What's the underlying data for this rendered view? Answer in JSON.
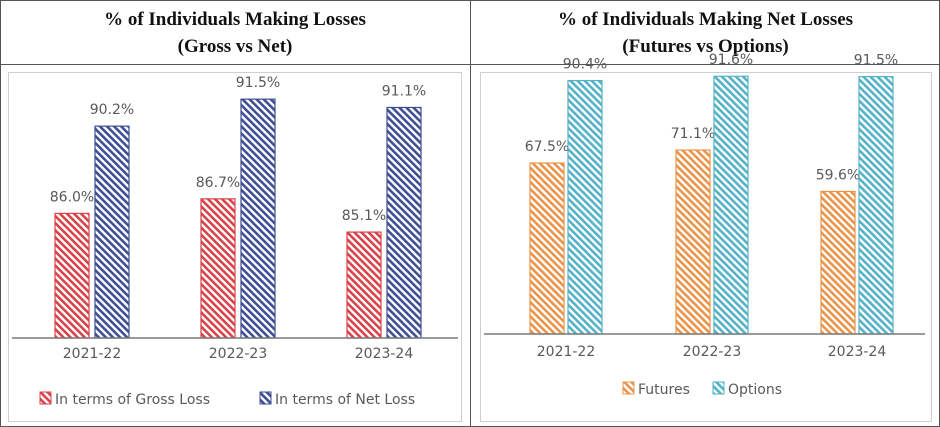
{
  "colors": {
    "gross": "#d8434a",
    "net": "#3e4f93",
    "futures": "#e8944a",
    "options": "#55b2c6",
    "axis": "#7a7a7a",
    "label": "#595959"
  },
  "panels": [
    {
      "title_line1": "% of Individuals Making Losses",
      "title_line2": "(Gross vs Net)"
    },
    {
      "title_line1": "% of Individuals Making Net Losses",
      "title_line2": "(Futures vs Options)"
    }
  ],
  "chart_data": [
    {
      "type": "bar",
      "title": "% of Individuals Making Losses (Gross vs Net)",
      "categories": [
        "2021-22",
        "2022-23",
        "2023-24"
      ],
      "series": [
        {
          "name": "In terms of Gross Loss",
          "values": [
            86.0,
            86.7,
            85.1
          ],
          "labels": [
            "86.0%",
            "86.7%",
            "85.1%"
          ],
          "color_key": "gross"
        },
        {
          "name": "In terms of Net Loss",
          "values": [
            90.2,
            91.5,
            91.1
          ],
          "labels": [
            "90.2%",
            "91.5%",
            "91.1%"
          ],
          "color_key": "net"
        }
      ],
      "ylim": [
        80,
        93
      ],
      "grid": false,
      "legend": "bottom"
    },
    {
      "type": "bar",
      "title": "% of Individuals Making Net Losses (Futures vs Options)",
      "categories": [
        "2021-22",
        "2022-23",
        "2023-24"
      ],
      "series": [
        {
          "name": "Futures",
          "values": [
            67.5,
            71.1,
            59.6
          ],
          "labels": [
            "67.5%",
            "71.1%",
            "59.6%"
          ],
          "color_key": "futures"
        },
        {
          "name": "Options",
          "values": [
            90.4,
            91.6,
            91.5
          ],
          "labels": [
            "90.4%",
            "91.6%",
            "91.5%"
          ],
          "color_key": "options"
        }
      ],
      "ylim": [
        20,
        95
      ],
      "grid": false,
      "legend": "bottom"
    }
  ]
}
